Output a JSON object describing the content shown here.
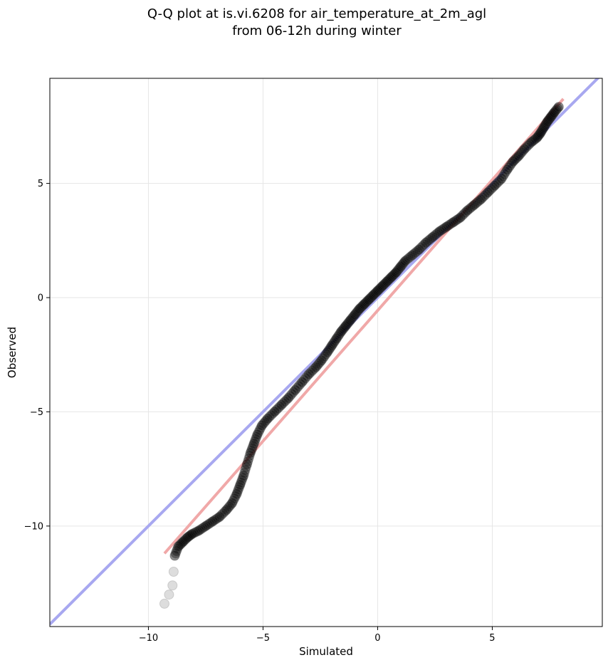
{
  "title_line1": "Q-Q plot at is.vi.6208 for air_temperature_at_2m_agl",
  "title_line2": "from 06-12h during winter",
  "chart_data": {
    "type": "scatter",
    "title": "Q-Q plot at is.vi.6208 for air_temperature_at_2m_agl\nfrom 06-12h during winter",
    "xlabel": "Simulated",
    "ylabel": "Observed",
    "xlim": [
      -14.3,
      9.8
    ],
    "ylim": [
      -14.4,
      9.6
    ],
    "xticks": [
      -10,
      -5,
      0,
      5
    ],
    "yticks": [
      -10,
      -5,
      0,
      5
    ],
    "xtick_labels": [
      "−10",
      "−5",
      "0",
      "5"
    ],
    "ytick_labels": [
      "−10",
      "−5",
      "0",
      "5"
    ],
    "grid": true,
    "series": [
      {
        "role": "quantiles",
        "color": "#000000",
        "points": [
          [
            -9.3,
            -13.4
          ],
          [
            -9.1,
            -13.0
          ],
          [
            -8.95,
            -12.6
          ],
          [
            -8.9,
            -12.0
          ],
          [
            -8.85,
            -11.3
          ],
          [
            -8.7,
            -10.9
          ],
          [
            -8.5,
            -10.7
          ],
          [
            -8.3,
            -10.5
          ],
          [
            -8.1,
            -10.35
          ],
          [
            -7.8,
            -10.2
          ],
          [
            -7.5,
            -10.0
          ],
          [
            -7.2,
            -9.8
          ],
          [
            -6.9,
            -9.6
          ],
          [
            -6.6,
            -9.3
          ],
          [
            -6.35,
            -9.0
          ],
          [
            -6.15,
            -8.6
          ],
          [
            -6.0,
            -8.2
          ],
          [
            -5.85,
            -7.8
          ],
          [
            -5.7,
            -7.3
          ],
          [
            -5.55,
            -6.8
          ],
          [
            -5.4,
            -6.4
          ],
          [
            -5.25,
            -6.0
          ],
          [
            -5.05,
            -5.6
          ],
          [
            -4.8,
            -5.3
          ],
          [
            -4.5,
            -5.0
          ],
          [
            -4.2,
            -4.7
          ],
          [
            -3.9,
            -4.4
          ],
          [
            -3.6,
            -4.05
          ],
          [
            -3.3,
            -3.7
          ],
          [
            -3.0,
            -3.35
          ],
          [
            -2.7,
            -3.05
          ],
          [
            -2.45,
            -2.75
          ],
          [
            -2.2,
            -2.4
          ],
          [
            -2.0,
            -2.1
          ],
          [
            -1.8,
            -1.8
          ],
          [
            -1.6,
            -1.5
          ],
          [
            -1.4,
            -1.25
          ],
          [
            -1.2,
            -1.0
          ],
          [
            -1.0,
            -0.75
          ],
          [
            -0.8,
            -0.5
          ],
          [
            -0.6,
            -0.3
          ],
          [
            -0.4,
            -0.1
          ],
          [
            -0.2,
            0.1
          ],
          [
            0.0,
            0.3
          ],
          [
            0.2,
            0.5
          ],
          [
            0.4,
            0.7
          ],
          [
            0.6,
            0.9
          ],
          [
            0.8,
            1.1
          ],
          [
            1.0,
            1.35
          ],
          [
            1.2,
            1.6
          ],
          [
            1.5,
            1.85
          ],
          [
            1.8,
            2.1
          ],
          [
            2.1,
            2.4
          ],
          [
            2.4,
            2.65
          ],
          [
            2.7,
            2.9
          ],
          [
            3.0,
            3.1
          ],
          [
            3.3,
            3.3
          ],
          [
            3.6,
            3.5
          ],
          [
            3.9,
            3.8
          ],
          [
            4.2,
            4.05
          ],
          [
            4.5,
            4.3
          ],
          [
            4.8,
            4.6
          ],
          [
            5.1,
            4.9
          ],
          [
            5.4,
            5.2
          ],
          [
            5.65,
            5.6
          ],
          [
            5.9,
            5.95
          ],
          [
            6.15,
            6.2
          ],
          [
            6.4,
            6.5
          ],
          [
            6.7,
            6.8
          ],
          [
            6.95,
            7.0
          ],
          [
            7.1,
            7.2
          ],
          [
            7.25,
            7.45
          ],
          [
            7.4,
            7.7
          ],
          [
            7.55,
            7.9
          ],
          [
            7.7,
            8.1
          ],
          [
            7.9,
            8.35
          ]
        ]
      },
      {
        "role": "identity-line",
        "color": "#a8a8f0",
        "points": [
          [
            -14.3,
            -14.3
          ],
          [
            9.8,
            9.8
          ]
        ]
      },
      {
        "role": "fit-line",
        "color": "#f0a8a8",
        "points": [
          [
            -9.3,
            -11.2
          ],
          [
            8.1,
            8.7
          ]
        ]
      }
    ]
  }
}
